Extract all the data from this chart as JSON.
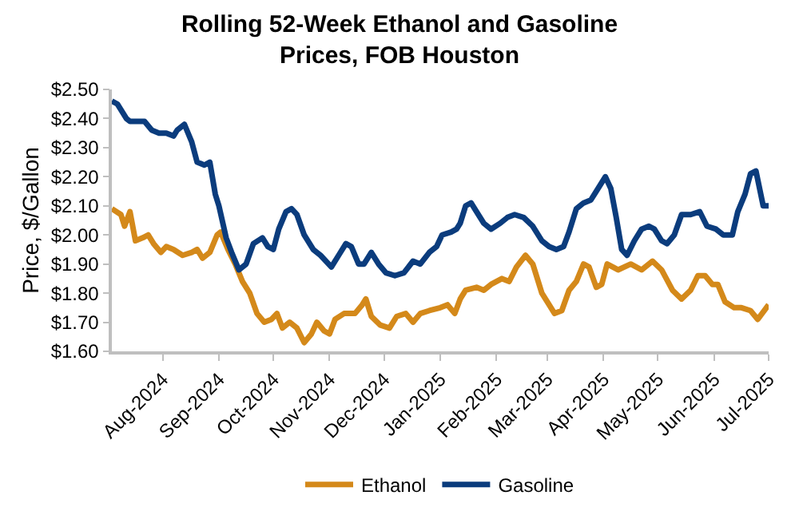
{
  "chart_data": {
    "type": "line",
    "title": "Rolling 52-Week Ethanol and Gasoline\nPrices, FOB Houston",
    "ylabel": "Price, $/Gallon",
    "xlim": [
      "2024-07-04",
      "2025-07-01"
    ],
    "xticks": [
      {
        "value": "2024-08-01",
        "label": "Aug-2024"
      },
      {
        "value": "2024-09-01",
        "label": "Sep-2024"
      },
      {
        "value": "2024-10-01",
        "label": "Oct-2024"
      },
      {
        "value": "2024-11-01",
        "label": "Nov-2024"
      },
      {
        "value": "2024-12-01",
        "label": "Dec-2024"
      },
      {
        "value": "2025-01-01",
        "label": "Jan-2025"
      },
      {
        "value": "2025-02-01",
        "label": "Feb-2025"
      },
      {
        "value": "2025-03-01",
        "label": "Mar-2025"
      },
      {
        "value": "2025-04-01",
        "label": "Apr-2025"
      },
      {
        "value": "2025-05-01",
        "label": "May-2025"
      },
      {
        "value": "2025-06-01",
        "label": "Jun-2025"
      },
      {
        "value": "2025-07-01",
        "label": "Jul-2025"
      }
    ],
    "ylim": [
      1.6,
      2.5
    ],
    "yticks": [
      {
        "value": 1.6,
        "label": "$1.60"
      },
      {
        "value": 1.7,
        "label": "$1.70"
      },
      {
        "value": 1.8,
        "label": "$1.80"
      },
      {
        "value": 1.9,
        "label": "$1.90"
      },
      {
        "value": 2.0,
        "label": "$2.00"
      },
      {
        "value": 2.1,
        "label": "$2.10"
      },
      {
        "value": 2.2,
        "label": "$2.20"
      },
      {
        "value": 2.3,
        "label": "$2.30"
      },
      {
        "value": 2.4,
        "label": "$2.40"
      },
      {
        "value": 2.5,
        "label": "$2.50"
      }
    ],
    "legend": "bottom",
    "marker": "none",
    "line_style": "solid",
    "series": [
      {
        "name": "Ethanol",
        "color": "#d4891a",
        "x": [
          "2024-07-04",
          "2024-07-09",
          "2024-07-11",
          "2024-07-14",
          "2024-07-17",
          "2024-07-21",
          "2024-07-24",
          "2024-07-27",
          "2024-07-31",
          "2024-08-03",
          "2024-08-07",
          "2024-08-12",
          "2024-08-17",
          "2024-08-20",
          "2024-08-23",
          "2024-08-27",
          "2024-08-31",
          "2024-09-02",
          "2024-09-06",
          "2024-09-10",
          "2024-09-14",
          "2024-09-18",
          "2024-09-22",
          "2024-09-26",
          "2024-09-30",
          "2024-10-03",
          "2024-10-06",
          "2024-10-10",
          "2024-10-14",
          "2024-10-18",
          "2024-10-22",
          "2024-10-25",
          "2024-10-29",
          "2024-11-01",
          "2024-11-04",
          "2024-11-09",
          "2024-11-15",
          "2024-11-19",
          "2024-11-21",
          "2024-11-24",
          "2024-11-29",
          "2024-12-04",
          "2024-12-08",
          "2024-12-13",
          "2024-12-17",
          "2024-12-21",
          "2024-12-26",
          "2025-01-01",
          "2025-01-05",
          "2025-01-09",
          "2025-01-12",
          "2025-01-15",
          "2025-01-21",
          "2025-01-25",
          "2025-01-29",
          "2025-02-04",
          "2025-02-08",
          "2025-02-12",
          "2025-02-17",
          "2025-02-21",
          "2025-02-26",
          "2025-03-02",
          "2025-03-05",
          "2025-03-09",
          "2025-03-13",
          "2025-03-17",
          "2025-03-21",
          "2025-03-24",
          "2025-03-28",
          "2025-03-31",
          "2025-04-03",
          "2025-04-09",
          "2025-04-16",
          "2025-04-22",
          "2025-04-28",
          "2025-05-03",
          "2025-05-09",
          "2025-05-14",
          "2025-05-19",
          "2025-05-23",
          "2025-05-27",
          "2025-05-31",
          "2025-06-03",
          "2025-06-07",
          "2025-06-12",
          "2025-06-16",
          "2025-06-21",
          "2025-06-25",
          "2025-07-01"
        ],
        "values": [
          2.09,
          2.07,
          2.03,
          2.08,
          1.98,
          1.99,
          2.0,
          1.97,
          1.94,
          1.96,
          1.95,
          1.93,
          1.94,
          1.95,
          1.92,
          1.94,
          2.0,
          2.01,
          1.95,
          1.9,
          1.84,
          1.8,
          1.73,
          1.7,
          1.71,
          1.73,
          1.68,
          1.7,
          1.68,
          1.63,
          1.66,
          1.7,
          1.67,
          1.66,
          1.71,
          1.73,
          1.73,
          1.76,
          1.78,
          1.72,
          1.69,
          1.68,
          1.72,
          1.73,
          1.7,
          1.73,
          1.74,
          1.75,
          1.76,
          1.73,
          1.78,
          1.81,
          1.82,
          1.81,
          1.83,
          1.85,
          1.84,
          1.89,
          1.93,
          1.9,
          1.8,
          1.76,
          1.73,
          1.74,
          1.81,
          1.84,
          1.9,
          1.89,
          1.82,
          1.83,
          1.9,
          1.88,
          1.9,
          1.88,
          1.91,
          1.88,
          1.81,
          1.78,
          1.81,
          1.86,
          1.86,
          1.83,
          1.83,
          1.77,
          1.75,
          1.75,
          1.74,
          1.71,
          1.76
        ]
      },
      {
        "name": "Gasoline",
        "color": "#0b3c7d",
        "x": [
          "2024-07-04",
          "2024-07-07",
          "2024-07-12",
          "2024-07-14",
          "2024-07-19",
          "2024-07-22",
          "2024-07-26",
          "2024-07-30",
          "2024-08-03",
          "2024-08-07",
          "2024-08-09",
          "2024-08-13",
          "2024-08-17",
          "2024-08-20",
          "2024-08-24",
          "2024-08-27",
          "2024-08-30",
          "2024-09-01",
          "2024-09-05",
          "2024-09-08",
          "2024-09-12",
          "2024-09-16",
          "2024-09-20",
          "2024-09-25",
          "2024-09-28",
          "2024-10-01",
          "2024-10-04",
          "2024-10-08",
          "2024-10-11",
          "2024-10-14",
          "2024-10-18",
          "2024-10-23",
          "2024-10-27",
          "2024-11-02",
          "2024-11-06",
          "2024-11-10",
          "2024-11-13",
          "2024-11-17",
          "2024-11-20",
          "2024-11-24",
          "2024-11-28",
          "2024-12-02",
          "2024-12-07",
          "2024-12-12",
          "2024-12-17",
          "2024-12-21",
          "2024-12-26",
          "2024-12-30",
          "2025-01-02",
          "2025-01-07",
          "2025-01-10",
          "2025-01-12",
          "2025-01-15",
          "2025-01-18",
          "2025-01-21",
          "2025-01-25",
          "2025-01-29",
          "2025-02-03",
          "2025-02-07",
          "2025-02-11",
          "2025-02-16",
          "2025-02-21",
          "2025-02-26",
          "2025-03-02",
          "2025-03-06",
          "2025-03-10",
          "2025-03-13",
          "2025-03-17",
          "2025-03-21",
          "2025-03-25",
          "2025-03-28",
          "2025-04-02",
          "2025-04-05",
          "2025-04-08",
          "2025-04-11",
          "2025-04-14",
          "2025-04-18",
          "2025-04-22",
          "2025-04-26",
          "2025-04-29",
          "2025-05-03",
          "2025-05-06",
          "2025-05-10",
          "2025-05-14",
          "2025-05-19",
          "2025-05-24",
          "2025-05-28",
          "2025-06-02",
          "2025-06-06",
          "2025-06-11",
          "2025-06-14",
          "2025-06-18",
          "2025-06-21",
          "2025-06-24",
          "2025-06-28",
          "2025-07-01"
        ],
        "values": [
          2.46,
          2.45,
          2.4,
          2.39,
          2.39,
          2.39,
          2.36,
          2.35,
          2.35,
          2.34,
          2.36,
          2.38,
          2.32,
          2.25,
          2.24,
          2.25,
          2.14,
          2.1,
          1.99,
          1.94,
          1.88,
          1.9,
          1.97,
          1.99,
          1.96,
          1.95,
          2.02,
          2.08,
          2.09,
          2.07,
          2.0,
          1.95,
          1.93,
          1.89,
          1.93,
          1.97,
          1.96,
          1.9,
          1.9,
          1.94,
          1.9,
          1.87,
          1.86,
          1.87,
          1.91,
          1.9,
          1.94,
          1.96,
          2.0,
          2.01,
          2.02,
          2.04,
          2.1,
          2.11,
          2.08,
          2.04,
          2.02,
          2.04,
          2.06,
          2.07,
          2.06,
          2.03,
          1.98,
          1.96,
          1.95,
          1.96,
          2.01,
          2.09,
          2.11,
          2.12,
          2.15,
          2.2,
          2.16,
          2.06,
          1.95,
          1.93,
          1.98,
          2.02,
          2.03,
          2.02,
          1.98,
          1.97,
          2.0,
          2.07,
          2.07,
          2.08,
          2.03,
          2.02,
          2.0,
          2.0,
          2.08,
          2.14,
          2.21,
          2.22,
          2.1,
          2.1
        ]
      }
    ]
  }
}
